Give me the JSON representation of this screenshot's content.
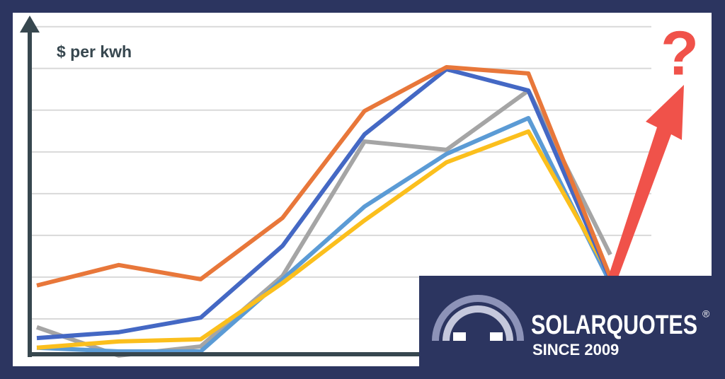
{
  "chart_data": {
    "type": "line",
    "y_label": "$ per kwh",
    "annotation": "?",
    "categories": [
      null,
      null,
      null,
      null,
      null,
      null,
      null,
      null
    ],
    "ylim": [
      0,
      8.3
    ],
    "yticks": [
      1,
      2,
      3,
      4,
      5,
      6,
      7,
      8
    ],
    "grid": true,
    "series": [
      {
        "color": "#a5a5a5",
        "values": [
          0.8,
          0.12,
          0.34,
          2.03,
          5.25,
          5.05,
          6.47,
          2.54
        ]
      },
      {
        "color": "#5b9bd5",
        "values": [
          0.31,
          0.22,
          0.22,
          1.95,
          3.69,
          4.95,
          5.81,
          1.86
        ]
      },
      {
        "color": "#fbbf1d",
        "values": [
          0.31,
          0.46,
          0.51,
          1.86,
          3.36,
          4.75,
          5.49,
          2.03
        ]
      },
      {
        "color": "#4468c4",
        "values": [
          0.54,
          0.68,
          1.03,
          2.75,
          5.42,
          6.98,
          6.47,
          1.95
        ]
      },
      {
        "color": "#e8773a",
        "values": [
          1.8,
          2.29,
          1.95,
          3.42,
          5.98,
          7.03,
          6.88,
          2.0
        ]
      }
    ]
  },
  "logo": {
    "name": "SOLARQUOTES",
    "mark": "®",
    "since": "SINCE 2009"
  }
}
